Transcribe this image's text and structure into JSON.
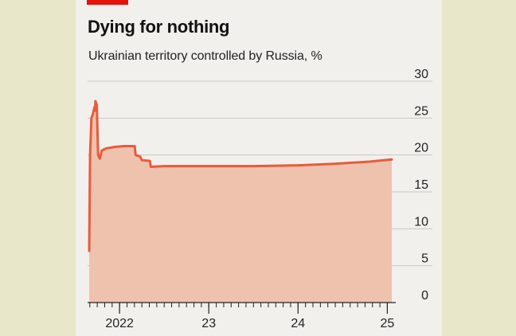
{
  "header": {
    "title": "Dying for nothing",
    "subtitle": "Ukrainian territory controlled by Russia, %"
  },
  "colors": {
    "accent_tag": "#e3120b",
    "line": "#eb5a3c",
    "area": "#efc2ae",
    "grid": "#c9c7c3",
    "background": "#f1f0ec",
    "page": "#e9e7c9"
  },
  "chart_data": {
    "type": "area",
    "title": "Dying for nothing",
    "subtitle": "Ukrainian territory controlled by Russia, %",
    "xlabel": "",
    "ylabel": "",
    "ylim": [
      0,
      30
    ],
    "y_ticks": [
      0,
      5,
      10,
      15,
      20,
      25,
      30
    ],
    "x_ticks": [
      {
        "label": "2022",
        "x": 2022.0
      },
      {
        "label": "23",
        "x": 2023.0
      },
      {
        "label": "24",
        "x": 2024.0
      },
      {
        "label": "25",
        "x": 2025.0
      }
    ],
    "xlim": [
      2021.66,
      2025.05
    ],
    "grid": true,
    "series": [
      {
        "values": [
          [
            2021.66,
            7.0
          ],
          [
            2021.67,
            20.0
          ],
          [
            2021.685,
            25.0
          ],
          [
            2021.7,
            25.5
          ],
          [
            2021.72,
            26.5
          ],
          [
            2021.725,
            26.0
          ],
          [
            2021.73,
            27.3
          ],
          [
            2021.745,
            26.8
          ],
          [
            2021.76,
            20.0
          ],
          [
            2021.78,
            19.5
          ],
          [
            2021.8,
            20.6
          ],
          [
            2021.85,
            20.9
          ],
          [
            2021.95,
            21.1
          ],
          [
            2022.05,
            21.2
          ],
          [
            2022.17,
            21.2
          ],
          [
            2022.18,
            20.0
          ],
          [
            2022.23,
            19.8
          ],
          [
            2022.25,
            19.3
          ],
          [
            2022.34,
            19.2
          ],
          [
            2022.35,
            18.4
          ],
          [
            2022.5,
            18.5
          ],
          [
            2023.0,
            18.5
          ],
          [
            2023.5,
            18.5
          ],
          [
            2024.0,
            18.6
          ],
          [
            2024.4,
            18.8
          ],
          [
            2024.8,
            19.1
          ],
          [
            2025.05,
            19.4
          ]
        ]
      }
    ]
  }
}
